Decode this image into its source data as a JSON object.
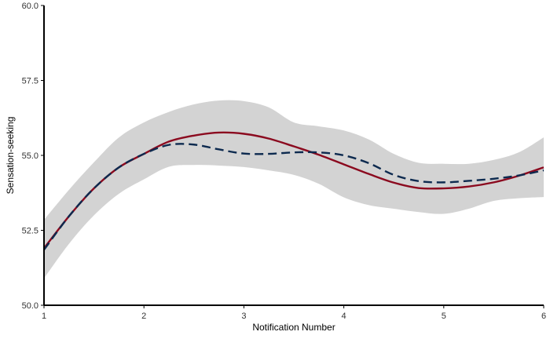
{
  "chart_data": {
    "type": "line",
    "title": "",
    "xlabel": "Notification Number",
    "ylabel": "Sensation-seeking",
    "xlim": [
      1,
      6
    ],
    "ylim": [
      50.0,
      60.0
    ],
    "x_ticks": [
      "1",
      "2",
      "3",
      "4",
      "5",
      "6"
    ],
    "y_ticks": [
      "50.0",
      "52.5",
      "55.0",
      "57.5",
      "60.0"
    ],
    "x_tick_values": [
      1,
      2,
      3,
      4,
      5,
      6
    ],
    "y_tick_values": [
      50.0,
      52.5,
      55.0,
      57.5,
      60.0
    ],
    "grid": false,
    "colors": {
      "fit": "#8b0a1f",
      "observed": "#0d2a4f",
      "ribbon": "#d3d3d3",
      "axis": "#000000"
    },
    "series": [
      {
        "style": "solid",
        "color": "#8b0a1f",
        "x": [
          1.0,
          1.25,
          1.5,
          1.75,
          2.0,
          2.25,
          2.5,
          2.75,
          3.0,
          3.25,
          3.5,
          3.75,
          4.0,
          4.25,
          4.5,
          4.75,
          5.0,
          5.25,
          5.5,
          5.75,
          6.0
        ],
        "y": [
          51.9,
          52.97,
          53.9,
          54.6,
          55.05,
          55.46,
          55.66,
          55.76,
          55.72,
          55.56,
          55.3,
          55.02,
          54.7,
          54.38,
          54.09,
          53.91,
          53.9,
          53.96,
          54.1,
          54.32,
          54.6
        ]
      },
      {
        "style": "dashed",
        "color": "#0d2a4f",
        "x": [
          1.0,
          1.25,
          1.5,
          1.75,
          2.0,
          2.25,
          2.5,
          2.75,
          3.0,
          3.25,
          3.5,
          3.75,
          4.0,
          4.25,
          4.5,
          4.75,
          5.0,
          5.25,
          5.5,
          5.75,
          6.0
        ],
        "y": [
          51.85,
          52.97,
          53.9,
          54.6,
          55.05,
          55.35,
          55.36,
          55.2,
          55.06,
          55.05,
          55.1,
          55.1,
          55.0,
          54.74,
          54.35,
          54.14,
          54.1,
          54.15,
          54.22,
          54.33,
          54.5
        ]
      }
    ],
    "ribbon": {
      "x": [
        1.0,
        1.25,
        1.5,
        1.75,
        2.0,
        2.25,
        2.5,
        2.75,
        3.0,
        3.25,
        3.5,
        3.75,
        4.0,
        4.25,
        4.5,
        4.75,
        5.0,
        5.25,
        5.5,
        5.75,
        6.0
      ],
      "upper": [
        52.85,
        53.85,
        54.77,
        55.6,
        56.1,
        56.45,
        56.7,
        56.83,
        56.81,
        56.6,
        56.1,
        55.97,
        55.83,
        55.53,
        55.05,
        54.75,
        54.72,
        54.72,
        54.85,
        55.1,
        55.6
      ],
      "lower": [
        50.9,
        52.05,
        53.0,
        53.72,
        54.2,
        54.62,
        54.68,
        54.66,
        54.61,
        54.5,
        54.35,
        54.05,
        53.6,
        53.34,
        53.22,
        53.11,
        53.05,
        53.22,
        53.48,
        53.57,
        53.61
      ]
    }
  }
}
